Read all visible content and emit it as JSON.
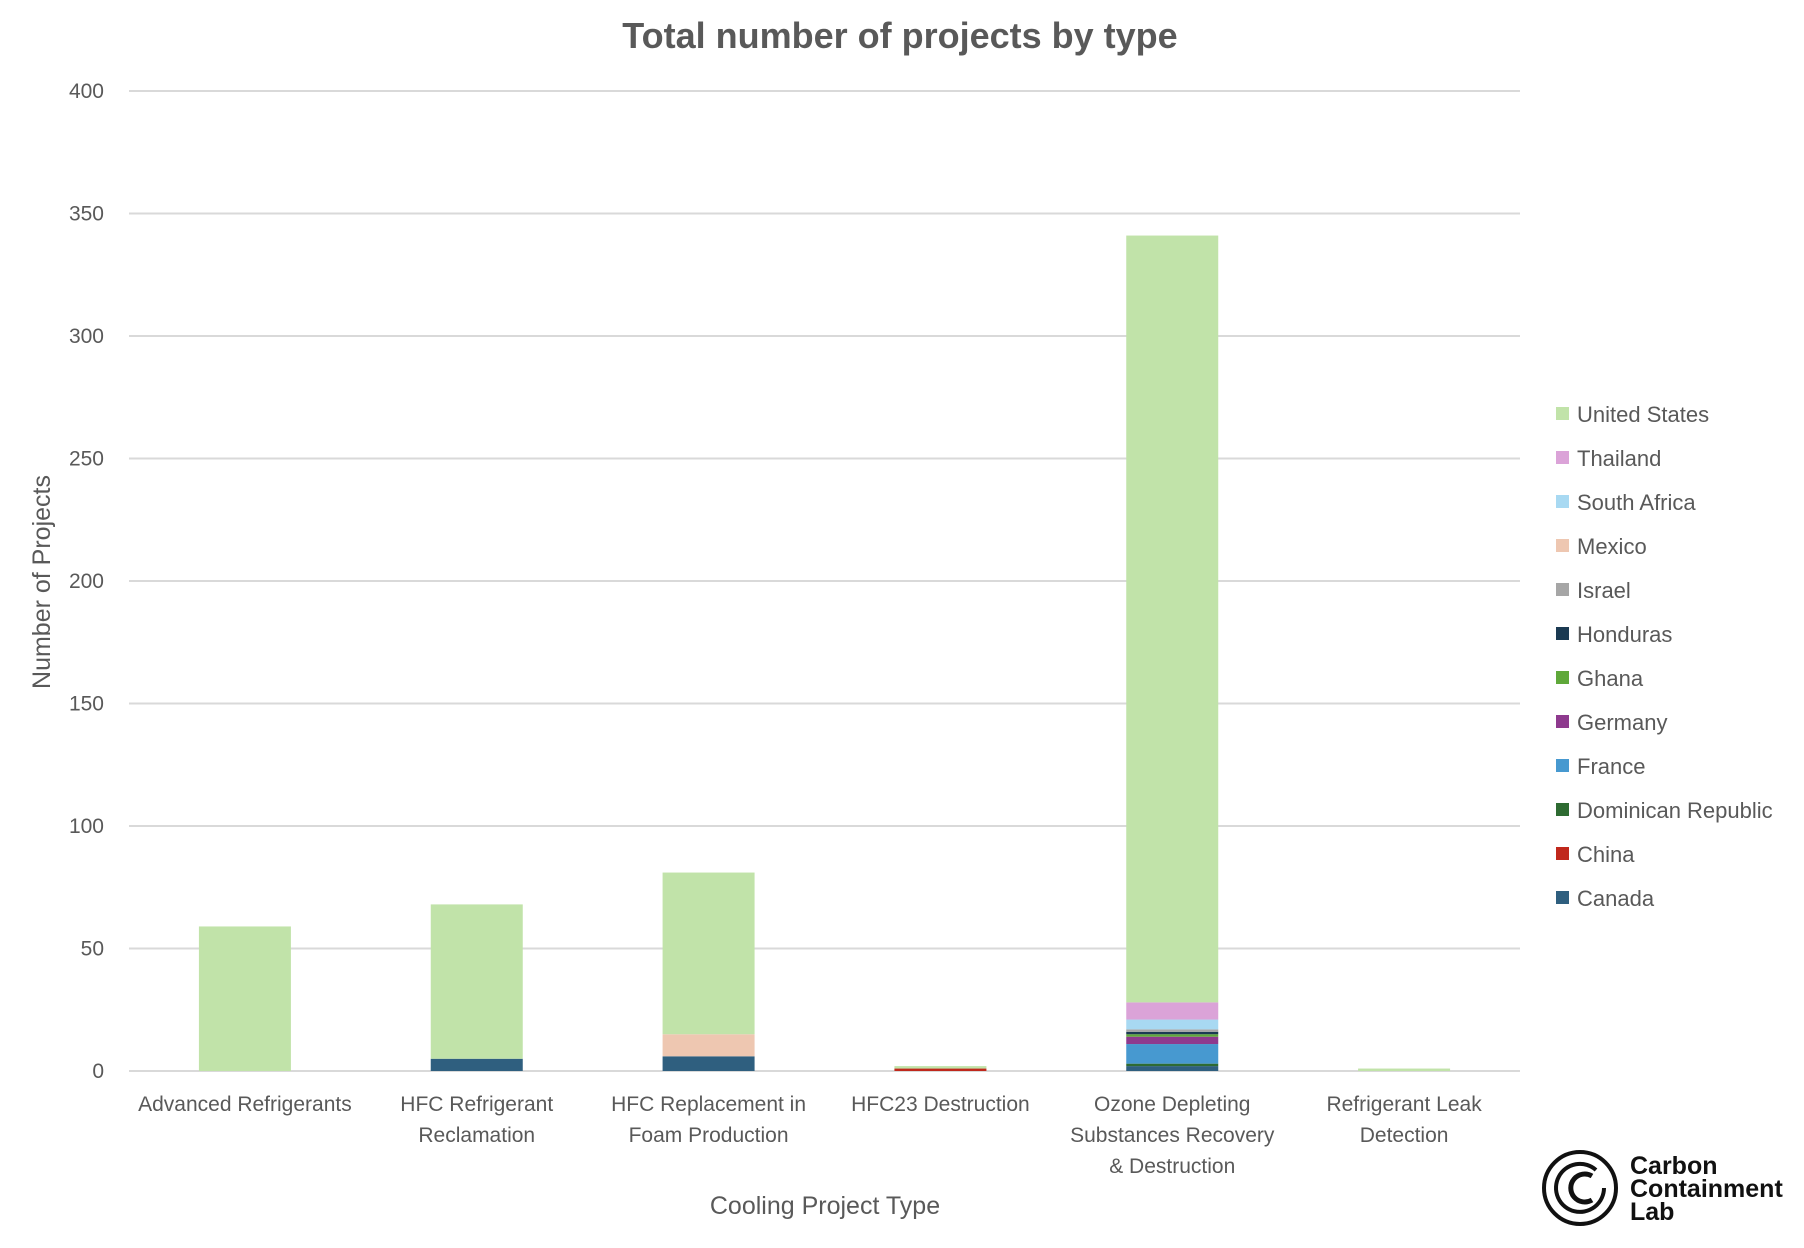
{
  "chart_data": {
    "type": "bar",
    "stacked": true,
    "title": "Total number of projects by type",
    "xlabel": "Cooling Project Type",
    "ylabel": "Number of Projects",
    "ylim": [
      0,
      400
    ],
    "yticks": [
      0,
      50,
      100,
      150,
      200,
      250,
      300,
      350,
      400
    ],
    "grid": true,
    "legend_position": "right",
    "categories": [
      [
        "Advanced Refrigerants"
      ],
      [
        "HFC Refrigerant",
        "Reclamation"
      ],
      [
        "HFC Replacement in",
        "Foam Production"
      ],
      [
        "HFC23 Destruction"
      ],
      [
        "Ozone Depleting",
        "Substances Recovery",
        "& Destruction"
      ],
      [
        "Refrigerant Leak",
        "Detection"
      ]
    ],
    "series": [
      {
        "name": "Canada",
        "color": "#2f5f7f",
        "values": [
          0,
          5,
          6,
          0,
          2,
          0
        ]
      },
      {
        "name": "China",
        "color": "#c0281c",
        "values": [
          0,
          0,
          0,
          1,
          0,
          0
        ]
      },
      {
        "name": "Dominican Republic",
        "color": "#2e6b32",
        "values": [
          0,
          0,
          0,
          0,
          1,
          0
        ]
      },
      {
        "name": "France",
        "color": "#4799d0",
        "values": [
          0,
          0,
          0,
          0,
          8,
          0
        ]
      },
      {
        "name": "Germany",
        "color": "#8e3a8e",
        "values": [
          0,
          0,
          0,
          0,
          3,
          0
        ]
      },
      {
        "name": "Ghana",
        "color": "#5fa83a",
        "values": [
          0,
          0,
          0,
          0,
          1,
          0
        ]
      },
      {
        "name": "Honduras",
        "color": "#1b3a52",
        "values": [
          0,
          0,
          0,
          0,
          1,
          0
        ]
      },
      {
        "name": "Israel",
        "color": "#a6a6a6",
        "values": [
          0,
          0,
          0,
          0,
          1,
          0
        ]
      },
      {
        "name": "Mexico",
        "color": "#eec7b1",
        "values": [
          0,
          0,
          9,
          0,
          0,
          0
        ]
      },
      {
        "name": "South Africa",
        "color": "#a8d9f2",
        "values": [
          0,
          0,
          0,
          0,
          4,
          0
        ]
      },
      {
        "name": "Thailand",
        "color": "#dba3d8",
        "values": [
          0,
          0,
          0,
          0,
          7,
          0
        ]
      },
      {
        "name": "United States",
        "color": "#c1e3a9",
        "values": [
          59,
          63,
          66,
          1,
          313,
          1
        ]
      }
    ]
  },
  "logo": {
    "lines": [
      "Carbon",
      "Containment",
      "Lab"
    ]
  }
}
